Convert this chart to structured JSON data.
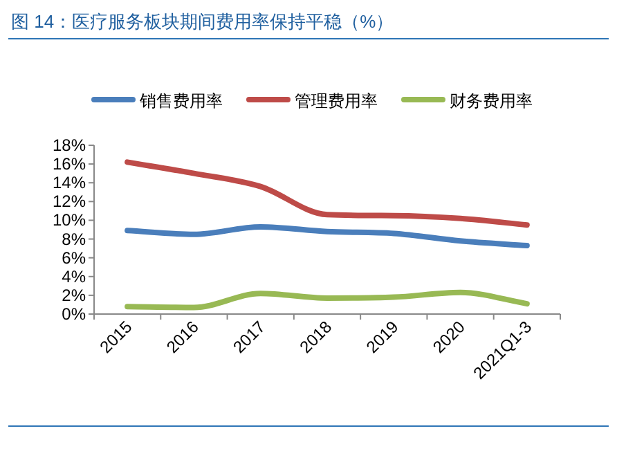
{
  "chart_data": {
    "type": "line",
    "title": "图 14：医疗服务板块期间费用率保持平稳（%）",
    "categories": [
      "2015",
      "2016",
      "2017",
      "2018",
      "2019",
      "2020",
      "2021Q1-3"
    ],
    "series": [
      {
        "name": "销售费用率",
        "color": "#4a7ebb",
        "values": [
          8.9,
          8.5,
          9.3,
          8.8,
          8.6,
          7.8,
          7.3
        ]
      },
      {
        "name": "管理费用率",
        "color": "#be4b48",
        "values": [
          16.2,
          15.0,
          13.6,
          10.6,
          10.5,
          10.2,
          9.5
        ]
      },
      {
        "name": "财务费用率",
        "color": "#98b954",
        "values": [
          0.8,
          0.7,
          2.2,
          1.7,
          1.8,
          2.3,
          1.1
        ]
      }
    ],
    "ylim": [
      0,
      18
    ],
    "yticks": [
      {
        "value": 0,
        "label": "0%"
      },
      {
        "value": 2,
        "label": "2%"
      },
      {
        "value": 4,
        "label": "4%"
      },
      {
        "value": 6,
        "label": "6%"
      },
      {
        "value": 8,
        "label": "8%"
      },
      {
        "value": 10,
        "label": "10%"
      },
      {
        "value": 12,
        "label": "12%"
      },
      {
        "value": 14,
        "label": "14%"
      },
      {
        "value": 16,
        "label": "16%"
      },
      {
        "value": 18,
        "label": "18%"
      }
    ],
    "grid": false,
    "legend": "top",
    "marker": "none",
    "line_style": "solid"
  }
}
